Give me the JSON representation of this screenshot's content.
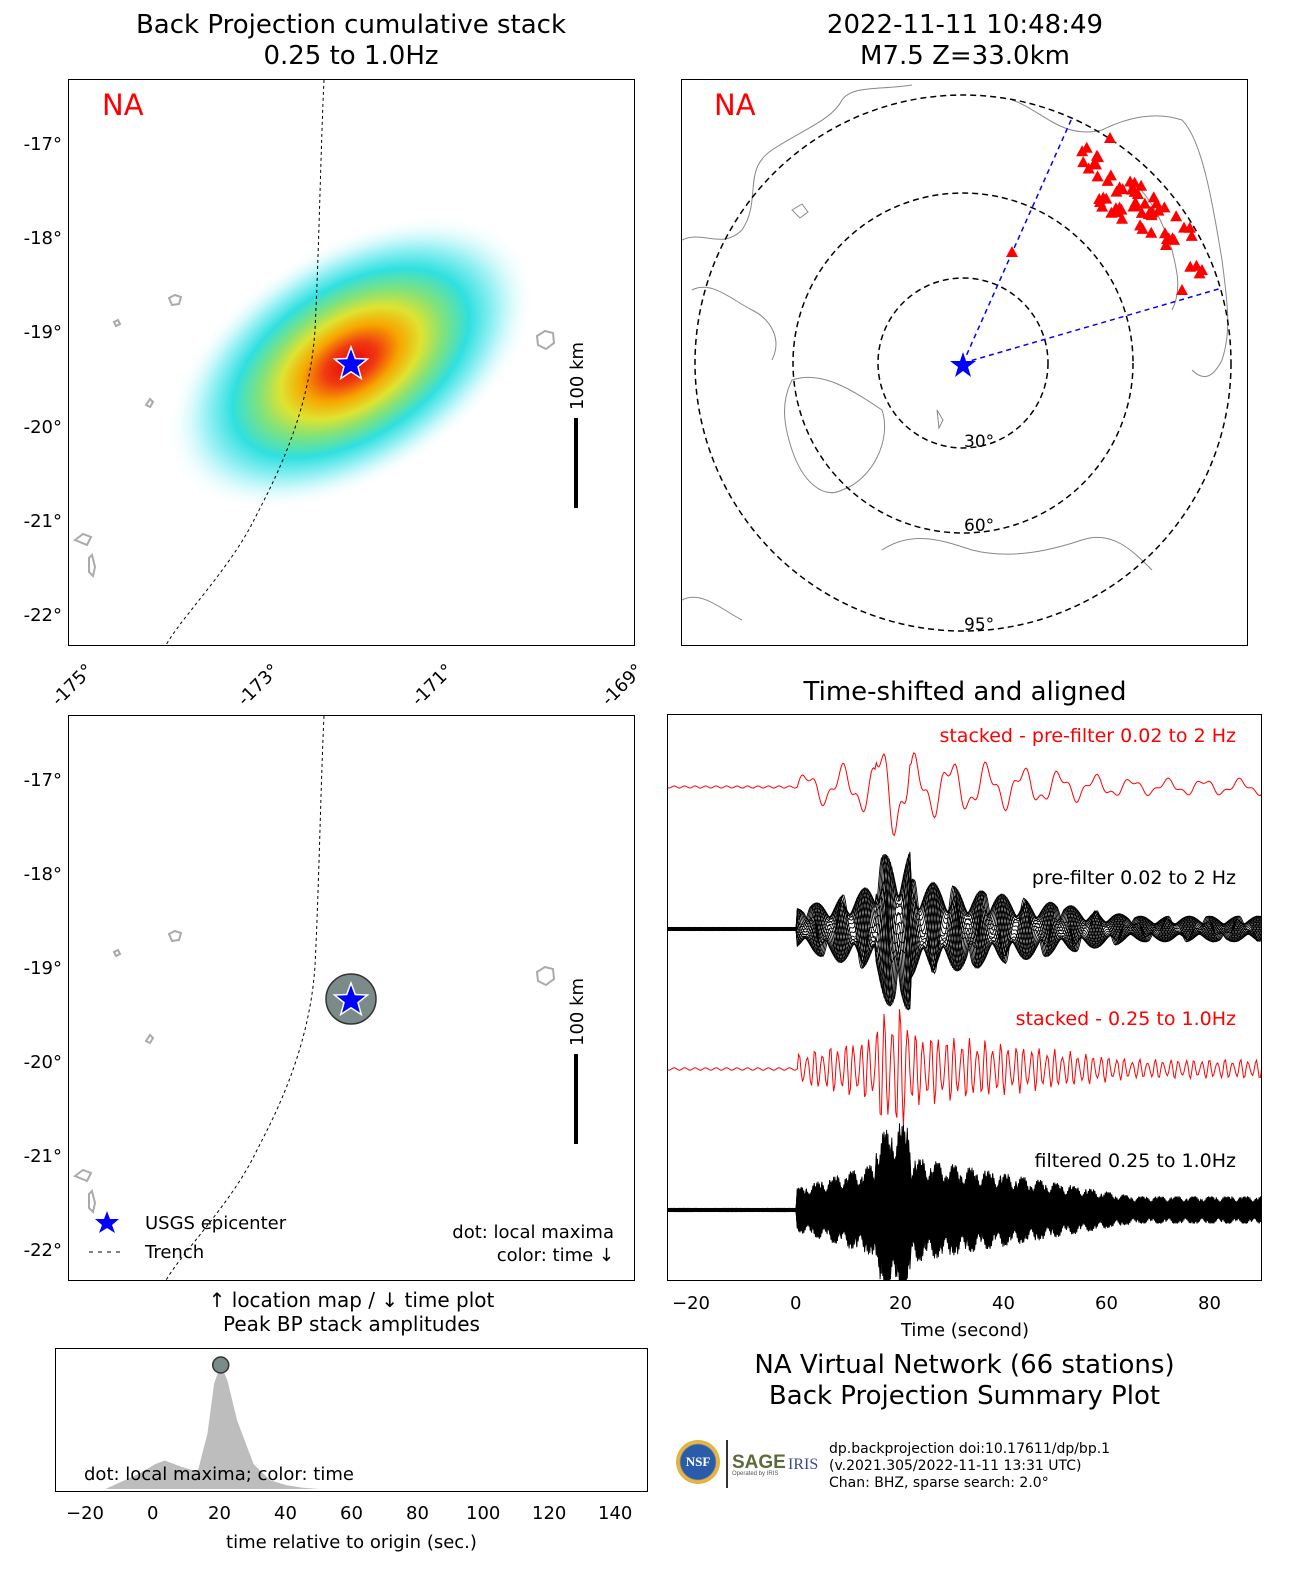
{
  "top_left": {
    "title_line1": "Back Projection cumulative stack",
    "title_line2": "0.25 to 1.0Hz",
    "network_label": "NA",
    "scale_label": "100 km",
    "yticks": [
      "-17°",
      "-18°",
      "-19°",
      "-20°",
      "-21°",
      "-22°"
    ],
    "xticks": [
      "-175°",
      "-173°",
      "-171°",
      "-169°"
    ]
  },
  "top_right": {
    "title_line1": "2022-11-11 10:48:49",
    "title_line2": "M7.5 Z=33.0km",
    "network_label": "NA",
    "rings": [
      "30°",
      "60°",
      "95°"
    ]
  },
  "bottom_left": {
    "scale_label": "100 km",
    "yticks": [
      "-17°",
      "-18°",
      "-19°",
      "-20°",
      "-21°",
      "-22°"
    ],
    "legend_epicenter": "USGS epicenter",
    "legend_trench": "Trench",
    "note_line1": "dot: local maxima",
    "note_line2": "color: time ↓",
    "caption_line1": "↑ location map / ↓ time plot",
    "caption_line2": "Peak BP stack amplitudes"
  },
  "traces": {
    "title": "Time-shifted and aligned",
    "label_stacked_prefilter": "stacked - pre-filter 0.02 to 2 Hz",
    "label_prefilter": "pre-filter 0.02 to 2 Hz",
    "label_stacked_filtered": "stacked - 0.25 to 1.0Hz",
    "label_filtered": "filtered 0.25 to 1.0Hz",
    "xlabel": "Time (second)",
    "xticks": [
      "−20",
      "0",
      "20",
      "40",
      "60",
      "80"
    ]
  },
  "amplitude": {
    "note": "dot: local maxima; color: time",
    "xlabel": "time relative to origin (sec.)",
    "xticks": [
      "−20",
      "0",
      "20",
      "40",
      "60",
      "80",
      "100",
      "120",
      "140"
    ]
  },
  "summary": {
    "line1": "NA Virtual Network (66 stations)",
    "line2": "Back Projection Summary Plot"
  },
  "credits": {
    "nsf_logo": "NSF",
    "sage_logo": "SAGE",
    "sage_sub": "Operated by IRIS",
    "iris_logo": "IRIS",
    "line1": "dp.backprojection doi:10.17611/dp/bp.1",
    "line2": "(v.2021.305/2022-11-11 13:31 UTC)",
    "line3": "Chan: BHZ, sparse search: 2.0°"
  },
  "colors": {
    "accent": "#ff0000",
    "epicenter": "#0000ff",
    "trace": "#000000",
    "ring": "#000000",
    "path": "#0000ff"
  },
  "chart_data": [
    {
      "type": "heatmap",
      "title": "Back Projection cumulative stack",
      "subtitle": "0.25 to 1.0Hz",
      "xlim": [
        -175,
        -169
      ],
      "ylim": [
        -22.3,
        -16.4
      ],
      "peak": {
        "lon": -172.0,
        "lat": -19.3
      },
      "epicenter": {
        "lon": -172.0,
        "lat": -19.3
      },
      "trench": [
        [
          -172.3,
          -16.4
        ],
        [
          -172.4,
          -18.5
        ],
        [
          -173.0,
          -20.5
        ],
        [
          -173.9,
          -22.3
        ]
      ]
    },
    {
      "type": "scatter",
      "title": "2022-11-11 10:48:49",
      "subtitle": "M7.5 Z=33.0km",
      "distance_rings_deg": [
        30,
        60,
        95
      ],
      "stations": 66
    },
    {
      "type": "line",
      "title": "Time-shifted and aligned",
      "xlabel": "Time (second)",
      "xlim": [
        -25,
        90
      ],
      "series": [
        {
          "name": "stacked - pre-filter 0.02 to 2 Hz",
          "peak_time": 19
        },
        {
          "name": "pre-filter 0.02 to 2 Hz"
        },
        {
          "name": "stacked - 0.25 to 1.0Hz",
          "peak_time": 19
        },
        {
          "name": "filtered 0.25 to 1.0Hz"
        }
      ]
    },
    {
      "type": "area",
      "xlabel": "time relative to origin (sec.)",
      "xlim": [
        -30,
        150
      ],
      "x": [
        -15,
        -5,
        0,
        3,
        8,
        13,
        16,
        18,
        20,
        22,
        25,
        30,
        35,
        40,
        45,
        50
      ],
      "values": [
        0.0,
        0.12,
        0.2,
        0.23,
        0.18,
        0.14,
        0.45,
        0.85,
        1.0,
        0.88,
        0.55,
        0.2,
        0.07,
        0.03,
        0.01,
        0.0
      ],
      "local_maxima": [
        {
          "time": 20,
          "value": 1.0
        }
      ]
    }
  ]
}
